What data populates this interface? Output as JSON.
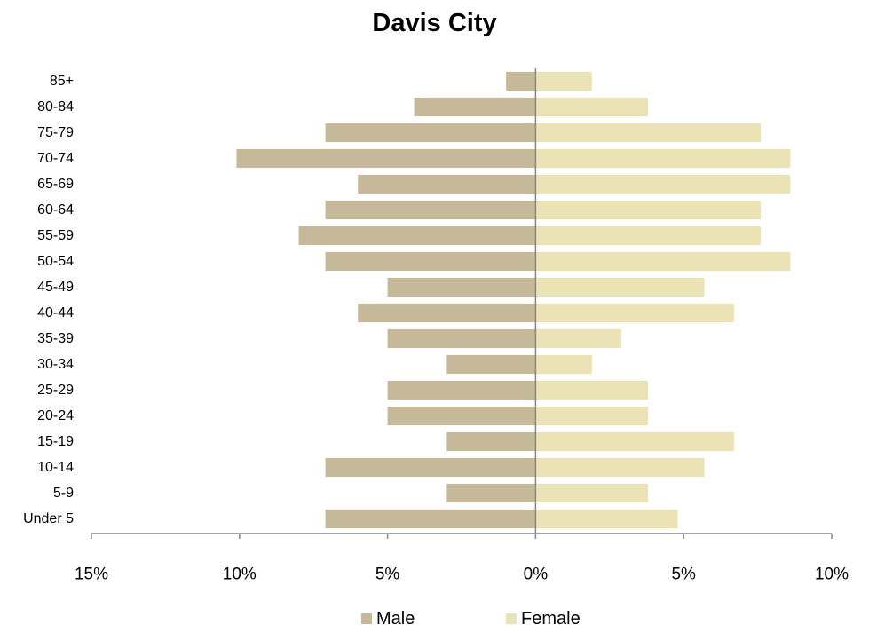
{
  "chart_data": {
    "type": "bar",
    "orientation": "horizontal",
    "title": "Davis City",
    "categories": [
      "Under 5",
      "5-9",
      "10-14",
      "15-19",
      "20-24",
      "25-29",
      "30-34",
      "35-39",
      "40-44",
      "45-49",
      "50-54",
      "55-59",
      "60-64",
      "65-69",
      "70-74",
      "75-79",
      "80-84",
      "85+"
    ],
    "series": [
      {
        "name": "Male",
        "color": "#c6b999",
        "values": [
          7.1,
          3.0,
          7.1,
          3.0,
          5.0,
          5.0,
          3.0,
          5.0,
          6.0,
          5.0,
          7.1,
          8.0,
          7.1,
          6.0,
          10.1,
          7.1,
          4.1,
          1.0
        ]
      },
      {
        "name": "Female",
        "color": "#ebe2b5",
        "values": [
          4.8,
          3.8,
          5.7,
          6.7,
          3.8,
          3.8,
          1.9,
          2.9,
          6.7,
          5.7,
          8.6,
          7.6,
          7.6,
          8.6,
          8.6,
          7.6,
          3.8,
          1.9
        ]
      }
    ],
    "xlim": [
      -15,
      10
    ],
    "x_ticks": [
      -15,
      -10,
      -5,
      0,
      5,
      10
    ],
    "x_tick_labels": [
      "15%",
      "10%",
      "5%",
      "0%",
      "5%",
      "10%"
    ],
    "grid": false,
    "legend_position": "bottom"
  }
}
